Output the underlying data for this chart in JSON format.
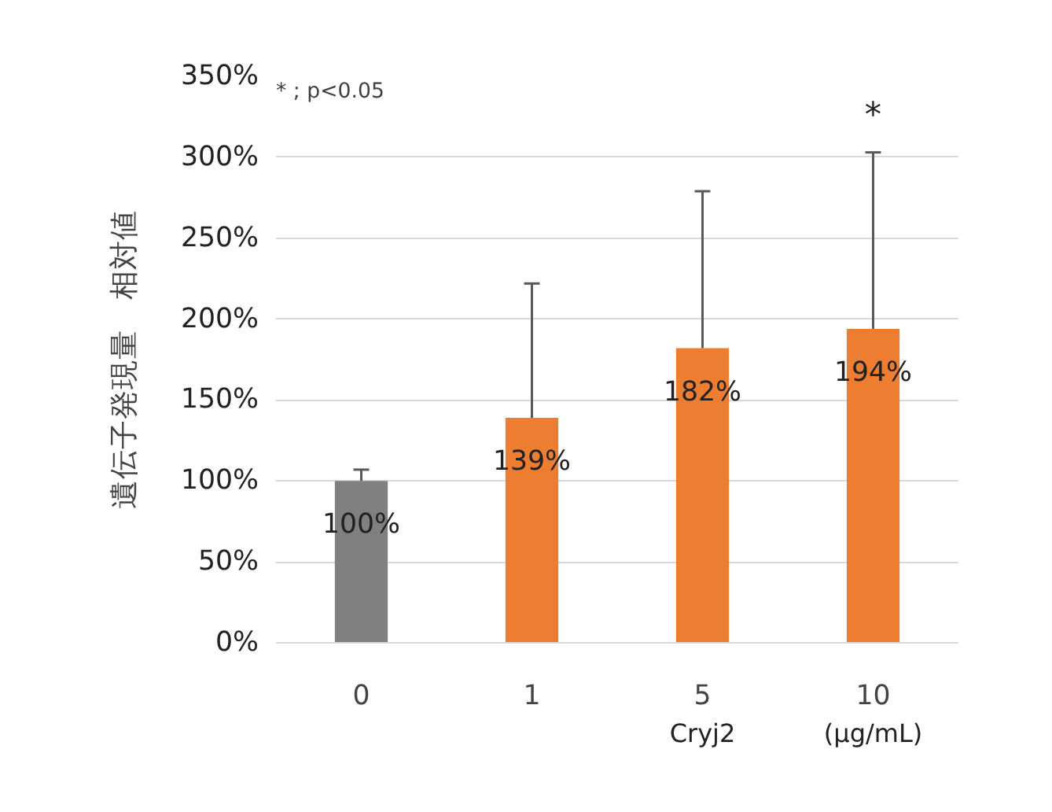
{
  "chart_data": {
    "type": "bar",
    "ylabel": "遺伝子発現量　相対値",
    "xlabel": "Cryj2",
    "categories": [
      "0",
      "1",
      "5",
      "10"
    ],
    "values": [
      100,
      139,
      182,
      194
    ],
    "colors": [
      "#808080",
      "#ed7d31",
      "#ed7d31",
      "#ed7d31"
    ],
    "errors": [
      [
        100,
        107
      ],
      [
        139,
        222
      ],
      [
        182,
        279
      ],
      [
        194,
        303
      ]
    ],
    "value_labels": [
      "100%",
      "139%",
      "182%",
      "194%"
    ],
    "ylim": [
      0,
      350
    ],
    "yticks": [
      {
        "value": 0,
        "label": "0%"
      },
      {
        "value": 50,
        "label": "50%"
      },
      {
        "value": 100,
        "label": "100%"
      },
      {
        "value": 150,
        "label": "150%"
      },
      {
        "value": 200,
        "label": "200%"
      },
      {
        "value": 250,
        "label": "250%"
      },
      {
        "value": 300,
        "label": "300%"
      },
      {
        "value": 350,
        "label": "350%"
      }
    ],
    "grid": "y",
    "annotations": [
      "* ; p<0.05",
      "*",
      "(μg/mL)"
    ]
  }
}
